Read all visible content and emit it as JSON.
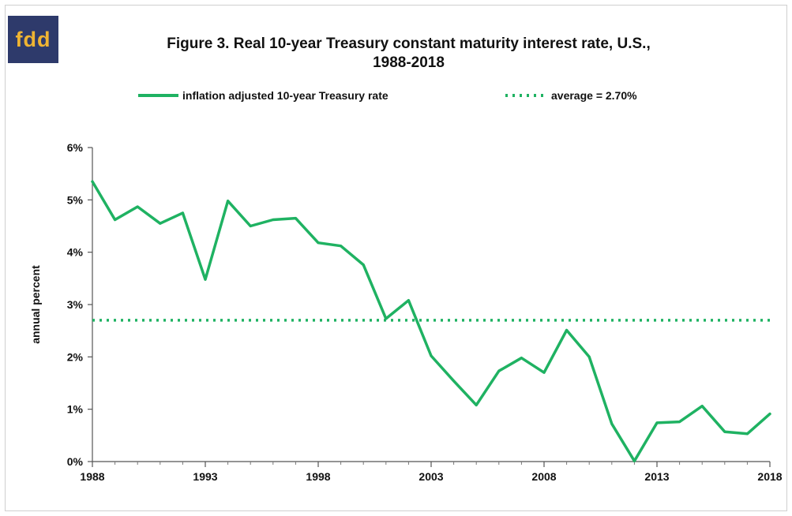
{
  "logo": {
    "text": "fdd"
  },
  "title": {
    "line1": "Figure 3. Real 10-year Treasury constant maturity interest rate, U.S.,",
    "line2": "1988-2018"
  },
  "colors": {
    "series": "#1fb262",
    "logo_bg": "#2e3a6b",
    "logo_text": "#f0b432"
  },
  "chart_data": {
    "type": "line",
    "ylabel": "annual percent",
    "xlabel": "",
    "xlim": [
      1988,
      2018
    ],
    "ylim": [
      0,
      6
    ],
    "x_ticks": [
      1988,
      1993,
      1998,
      2003,
      2008,
      2013,
      2018
    ],
    "y_ticks": [
      {
        "value": 0,
        "label": "0%"
      },
      {
        "value": 1,
        "label": "1%"
      },
      {
        "value": 2,
        "label": "2%"
      },
      {
        "value": 3,
        "label": "3%"
      },
      {
        "value": 4,
        "label": "4%"
      },
      {
        "value": 5,
        "label": "5%"
      },
      {
        "value": 6,
        "label": "6%"
      }
    ],
    "legend_position": "top",
    "series": [
      {
        "name": "inflation adjusted 10-year Treasury rate",
        "style": "solid",
        "x": [
          1988,
          1989,
          1990,
          1991,
          1992,
          1993,
          1994,
          1995,
          1996,
          1997,
          1998,
          1999,
          2000,
          2001,
          2002,
          2003,
          2004,
          2005,
          2006,
          2007,
          2008,
          2009,
          2010,
          2011,
          2012,
          2013,
          2014,
          2015,
          2016,
          2017,
          2018
        ],
        "values": [
          5.35,
          4.62,
          4.87,
          4.55,
          4.75,
          3.48,
          4.98,
          4.5,
          4.62,
          4.65,
          4.18,
          4.12,
          3.76,
          2.73,
          3.08,
          2.02,
          1.54,
          1.08,
          1.73,
          1.98,
          1.7,
          2.51,
          2.0,
          0.72,
          0.01,
          0.74,
          0.76,
          1.06,
          0.57,
          0.53,
          0.91
        ]
      },
      {
        "name": "average = 2.70%",
        "style": "dotted",
        "constant": 2.7
      }
    ]
  }
}
